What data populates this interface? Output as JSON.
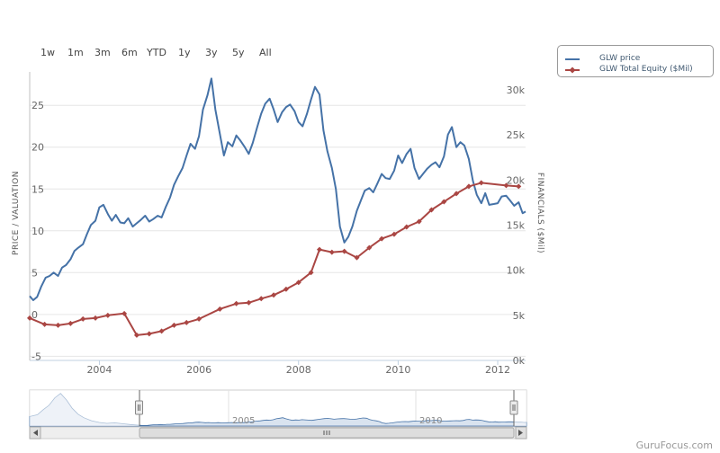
{
  "range_selector": [
    "1w",
    "1m",
    "3m",
    "6m",
    "YTD",
    "1y",
    "3y",
    "5y",
    "All"
  ],
  "legend": {
    "price": "GLW price",
    "equity": "GLW Total Equity ($Mil)"
  },
  "brand": "GuruFocus.com",
  "colors": {
    "price": "#4572a7",
    "equity": "#aa4643",
    "navigator_fill": "#d9e3ef"
  },
  "chart_data": {
    "type": "line",
    "ylabel": "PRICE / VALUATION",
    "y2label": "FINANCIALS ($Mil)",
    "x_ticks": [
      "2004",
      "2006",
      "2008",
      "2010",
      "2012"
    ],
    "y_ticks": [
      "-5",
      "0",
      "5",
      "10",
      "15",
      "20",
      "25"
    ],
    "y2_ticks": [
      "0k",
      "5k",
      "10k",
      "15k",
      "20k",
      "25k",
      "30k"
    ],
    "x_range": [
      2002.6,
      2012.56
    ],
    "y_range": [
      -5.5,
      29
    ],
    "y2_range": [
      0,
      32000
    ],
    "navigator_ticks": [
      "2005",
      "2010"
    ],
    "series": [
      {
        "name": "GLW price",
        "axis": "left",
        "points": [
          [
            2002.6,
            2.2
          ],
          [
            2002.67,
            1.7
          ],
          [
            2002.75,
            2.1
          ],
          [
            2002.83,
            3.3
          ],
          [
            2002.92,
            4.4
          ],
          [
            2003.0,
            4.6
          ],
          [
            2003.08,
            5.0
          ],
          [
            2003.17,
            4.6
          ],
          [
            2003.25,
            5.6
          ],
          [
            2003.33,
            5.9
          ],
          [
            2003.42,
            6.6
          ],
          [
            2003.5,
            7.6
          ],
          [
            2003.58,
            8.0
          ],
          [
            2003.67,
            8.4
          ],
          [
            2003.75,
            9.6
          ],
          [
            2003.83,
            10.7
          ],
          [
            2003.92,
            11.2
          ],
          [
            2004.0,
            12.8
          ],
          [
            2004.08,
            13.1
          ],
          [
            2004.17,
            12.0
          ],
          [
            2004.25,
            11.2
          ],
          [
            2004.33,
            11.9
          ],
          [
            2004.42,
            11.0
          ],
          [
            2004.5,
            10.9
          ],
          [
            2004.58,
            11.5
          ],
          [
            2004.67,
            10.5
          ],
          [
            2004.75,
            10.9
          ],
          [
            2004.83,
            11.3
          ],
          [
            2004.92,
            11.8
          ],
          [
            2005.0,
            11.1
          ],
          [
            2005.08,
            11.4
          ],
          [
            2005.17,
            11.8
          ],
          [
            2005.25,
            11.6
          ],
          [
            2005.33,
            12.8
          ],
          [
            2005.42,
            14.0
          ],
          [
            2005.5,
            15.5
          ],
          [
            2005.58,
            16.5
          ],
          [
            2005.67,
            17.5
          ],
          [
            2005.75,
            19.0
          ],
          [
            2005.83,
            20.4
          ],
          [
            2005.92,
            19.8
          ],
          [
            2006.0,
            21.3
          ],
          [
            2006.08,
            24.5
          ],
          [
            2006.17,
            26.2
          ],
          [
            2006.25,
            28.2
          ],
          [
            2006.33,
            24.5
          ],
          [
            2006.42,
            21.6
          ],
          [
            2006.5,
            19.0
          ],
          [
            2006.58,
            20.6
          ],
          [
            2006.67,
            20.1
          ],
          [
            2006.75,
            21.4
          ],
          [
            2006.83,
            20.8
          ],
          [
            2006.92,
            20.0
          ],
          [
            2007.0,
            19.2
          ],
          [
            2007.08,
            20.5
          ],
          [
            2007.17,
            22.4
          ],
          [
            2007.25,
            24.0
          ],
          [
            2007.33,
            25.2
          ],
          [
            2007.42,
            25.8
          ],
          [
            2007.5,
            24.5
          ],
          [
            2007.58,
            23.0
          ],
          [
            2007.67,
            24.2
          ],
          [
            2007.75,
            24.8
          ],
          [
            2007.83,
            25.1
          ],
          [
            2007.92,
            24.3
          ],
          [
            2008.0,
            23.0
          ],
          [
            2008.08,
            22.5
          ],
          [
            2008.17,
            24.0
          ],
          [
            2008.25,
            25.7
          ],
          [
            2008.33,
            27.2
          ],
          [
            2008.42,
            26.3
          ],
          [
            2008.5,
            22.0
          ],
          [
            2008.58,
            19.5
          ],
          [
            2008.67,
            17.5
          ],
          [
            2008.75,
            15.0
          ],
          [
            2008.83,
            10.5
          ],
          [
            2008.92,
            8.6
          ],
          [
            2009.0,
            9.3
          ],
          [
            2009.08,
            10.5
          ],
          [
            2009.17,
            12.4
          ],
          [
            2009.25,
            13.6
          ],
          [
            2009.33,
            14.8
          ],
          [
            2009.42,
            15.1
          ],
          [
            2009.5,
            14.6
          ],
          [
            2009.58,
            15.6
          ],
          [
            2009.67,
            16.8
          ],
          [
            2009.75,
            16.3
          ],
          [
            2009.83,
            16.2
          ],
          [
            2009.92,
            17.2
          ],
          [
            2010.0,
            19.0
          ],
          [
            2010.08,
            18.1
          ],
          [
            2010.17,
            19.2
          ],
          [
            2010.25,
            19.8
          ],
          [
            2010.33,
            17.5
          ],
          [
            2010.42,
            16.2
          ],
          [
            2010.5,
            16.8
          ],
          [
            2010.58,
            17.4
          ],
          [
            2010.67,
            17.9
          ],
          [
            2010.75,
            18.2
          ],
          [
            2010.83,
            17.6
          ],
          [
            2010.92,
            18.9
          ],
          [
            2011.0,
            21.5
          ],
          [
            2011.08,
            22.4
          ],
          [
            2011.17,
            20.0
          ],
          [
            2011.25,
            20.6
          ],
          [
            2011.33,
            20.2
          ],
          [
            2011.42,
            18.6
          ],
          [
            2011.5,
            16.0
          ],
          [
            2011.58,
            14.3
          ],
          [
            2011.67,
            13.3
          ],
          [
            2011.75,
            14.5
          ],
          [
            2011.83,
            13.1
          ],
          [
            2011.92,
            13.2
          ],
          [
            2012.0,
            13.3
          ],
          [
            2012.08,
            14.1
          ],
          [
            2012.17,
            14.2
          ],
          [
            2012.25,
            13.6
          ],
          [
            2012.33,
            13.0
          ],
          [
            2012.42,
            13.4
          ],
          [
            2012.5,
            12.1
          ],
          [
            2012.56,
            12.3
          ]
        ]
      },
      {
        "name": "GLW Total Equity ($Mil)",
        "axis": "right",
        "points": [
          [
            2002.6,
            4700
          ],
          [
            2002.9,
            4000
          ],
          [
            2003.17,
            3900
          ],
          [
            2003.42,
            4100
          ],
          [
            2003.67,
            4600
          ],
          [
            2003.92,
            4700
          ],
          [
            2004.17,
            5000
          ],
          [
            2004.5,
            5200
          ],
          [
            2004.75,
            2800
          ],
          [
            2005.0,
            2950
          ],
          [
            2005.25,
            3250
          ],
          [
            2005.5,
            3900
          ],
          [
            2005.75,
            4200
          ],
          [
            2006.0,
            4600
          ],
          [
            2006.42,
            5700
          ],
          [
            2006.75,
            6300
          ],
          [
            2007.0,
            6400
          ],
          [
            2007.25,
            6850
          ],
          [
            2007.5,
            7250
          ],
          [
            2007.75,
            7900
          ],
          [
            2008.0,
            8650
          ],
          [
            2008.25,
            9750
          ],
          [
            2008.42,
            12300
          ],
          [
            2008.67,
            12000
          ],
          [
            2008.92,
            12100
          ],
          [
            2009.17,
            11400
          ],
          [
            2009.42,
            12500
          ],
          [
            2009.67,
            13500
          ],
          [
            2009.92,
            14000
          ],
          [
            2010.17,
            14800
          ],
          [
            2010.42,
            15400
          ],
          [
            2010.67,
            16700
          ],
          [
            2010.92,
            17600
          ],
          [
            2011.17,
            18500
          ],
          [
            2011.42,
            19300
          ],
          [
            2011.67,
            19700
          ],
          [
            2012.17,
            19400
          ],
          [
            2012.42,
            19300
          ]
        ]
      }
    ]
  }
}
